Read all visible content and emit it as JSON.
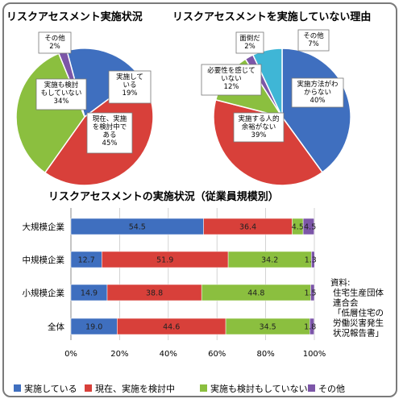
{
  "chart_data": [
    {
      "type": "pie",
      "title": "リスクアセスメント実施状況",
      "slices": [
        {
          "label": "実施している",
          "value": 19,
          "text": "実施して\nいる\n19%",
          "color": "#3f6fbf"
        },
        {
          "label": "現在、実施を検討中である",
          "value": 45,
          "text": "現在、実施\nを検討中で\nある\n45%",
          "color": "#d8403a"
        },
        {
          "label": "実施も検討もしていない",
          "value": 34,
          "text": "実施も検討\nもしていない\n34%",
          "color": "#8bbf3f"
        },
        {
          "label": "その他",
          "value": 2,
          "text": "その他\n2%",
          "color": "#7c56a8"
        }
      ]
    },
    {
      "type": "pie",
      "title": "リスクアセスメントを実施していない理由",
      "slices": [
        {
          "label": "実施方法がわからない",
          "value": 40,
          "text": "実施方法がわ\nからない\n40%",
          "color": "#3f6fbf"
        },
        {
          "label": "実施する人的余裕がない",
          "value": 39,
          "text": "実施する人的\n余裕がない\n39%",
          "color": "#d8403a"
        },
        {
          "label": "必要性を感じていない",
          "value": 12,
          "text": "必要性を感じて\nいない\n12%",
          "color": "#8bbf3f"
        },
        {
          "label": "面倒だ",
          "value": 2,
          "text": "面倒だ\n2%",
          "color": "#7c56a8"
        },
        {
          "label": "その他",
          "value": 7,
          "text": "その他\n7%",
          "color": "#3fb6d6"
        }
      ]
    },
    {
      "type": "bar",
      "orientation": "horizontal",
      "stacked": true,
      "title": "リスクアセスメントの実施状況（従業員規模別）",
      "categories": [
        "大規模企業",
        "中規模企業",
        "小規模企業",
        "全体"
      ],
      "series": [
        {
          "name": "実施している",
          "color": "#3f6fbf",
          "values": [
            54.5,
            12.7,
            14.9,
            19.0
          ],
          "labels": [
            "54.5",
            "12.7",
            "14.9",
            "19.0"
          ]
        },
        {
          "name": "現在、実施を検討中",
          "color": "#d8403a",
          "values": [
            36.4,
            51.9,
            38.8,
            44.6
          ],
          "labels": [
            "36.4",
            "51.9",
            "38.8",
            "44.6"
          ]
        },
        {
          "name": "実施も検討もしていない",
          "color": "#8bbf3f",
          "values": [
            4.5,
            34.2,
            44.8,
            34.5
          ],
          "labels": [
            "4.5",
            "34.2",
            "44.8",
            "34.5"
          ]
        },
        {
          "name": "その他",
          "color": "#7c56a8",
          "values": [
            4.5,
            1.3,
            1.5,
            1.8
          ],
          "labels": [
            "4.5",
            "1.3",
            "1.5",
            "1.8"
          ]
        }
      ],
      "x_ticks": [
        "0%",
        "20%",
        "40%",
        "60%",
        "80%",
        "100%"
      ],
      "xlim": [
        0,
        100
      ],
      "grid": true,
      "legend": "bottom"
    }
  ],
  "source_note": [
    "資料:",
    "住宅生産団体",
    "連合会",
    "「低層住宅の",
    "労働災害発生",
    "状況報告書」"
  ]
}
